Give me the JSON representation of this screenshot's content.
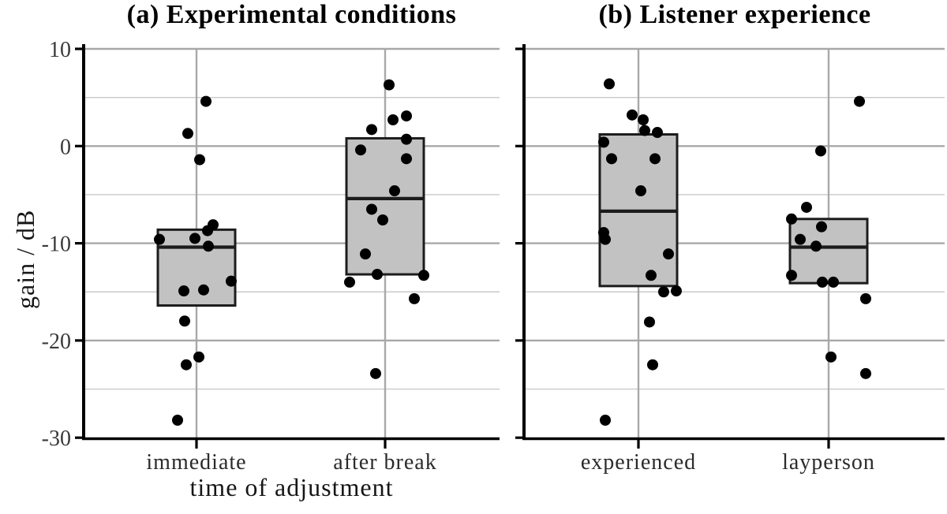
{
  "figure": {
    "background": "#ffffff"
  },
  "style": {
    "box_fill": "#c2c2c2",
    "box_stroke": "#1c1c1c",
    "median_color": "#1c1c1c",
    "point_color": "#000000",
    "axis_color": "#000000",
    "grid_major_color": "#a8a8a8",
    "grid_minor_color": "#c9c9c9",
    "tick_label_color": "#3a3a3a",
    "category_label_color": "#2b2b2b"
  },
  "chart_data": [
    {
      "type": "boxplot",
      "panel_label": "a",
      "title": "(a) Experimental conditions",
      "xlabel": "time of adjustment",
      "ylabel": "gain / dB",
      "ylim": [
        -30,
        10
      ],
      "y_major_ticks": [
        10,
        0,
        -10,
        -20,
        -30
      ],
      "y_minor_gridlines": [
        5,
        -5,
        -15,
        -25
      ],
      "grid": true,
      "legend": "none",
      "categories": [
        "immediate",
        "after break"
      ],
      "boxes": [
        {
          "category": "immediate",
          "q1": -16.4,
          "median": -10.4,
          "q3": -8.6
        },
        {
          "category": "after break",
          "q1": -13.2,
          "median": -5.4,
          "q3": 0.8
        }
      ],
      "points": [
        {
          "category": "immediate",
          "points_dx_db": [
            [
              12,
              4.6
            ],
            [
              -11,
              1.3
            ],
            [
              4,
              -1.4
            ],
            [
              21,
              -8.1
            ],
            [
              14,
              -8.7
            ],
            [
              -2,
              -9.5
            ],
            [
              -47,
              -9.6
            ],
            [
              15,
              -10.3
            ],
            [
              44,
              -13.9
            ],
            [
              9,
              -14.8
            ],
            [
              -16,
              -14.9
            ],
            [
              -15,
              -18.0
            ],
            [
              3,
              -21.7
            ],
            [
              -13,
              -22.5
            ],
            [
              -24,
              -28.2
            ]
          ]
        },
        {
          "category": "after break",
          "points_dx_db": [
            [
              5,
              6.3
            ],
            [
              27,
              3.1
            ],
            [
              10,
              2.7
            ],
            [
              -17,
              1.7
            ],
            [
              27,
              0.7
            ],
            [
              -31,
              -0.4
            ],
            [
              27,
              -1.3
            ],
            [
              12,
              -4.6
            ],
            [
              -17,
              -6.5
            ],
            [
              -3,
              -7.6
            ],
            [
              -25,
              -11.1
            ],
            [
              -10,
              -13.2
            ],
            [
              49,
              -13.3
            ],
            [
              -45,
              -14.0
            ],
            [
              37,
              -15.7
            ],
            [
              -12,
              -23.4
            ]
          ]
        }
      ]
    },
    {
      "type": "boxplot",
      "panel_label": "b",
      "title": "(b) Listener experience",
      "xlabel": "",
      "ylabel": "gain / dB",
      "ylim": [
        -30,
        10
      ],
      "y_major_ticks": [
        10,
        0,
        -10,
        -20,
        -30
      ],
      "y_minor_gridlines": [
        5,
        -5,
        -15,
        -25
      ],
      "grid": true,
      "legend": "none",
      "categories": [
        "experienced",
        "layperson"
      ],
      "boxes": [
        {
          "category": "experienced",
          "q1": -14.4,
          "median": -6.7,
          "q3": 1.2
        },
        {
          "category": "layperson",
          "q1": -14.1,
          "median": -10.4,
          "q3": -7.5
        }
      ],
      "points": [
        {
          "category": "experienced",
          "points_dx_db": [
            [
              -37,
              6.4
            ],
            [
              -8,
              3.2
            ],
            [
              6,
              2.7
            ],
            [
              8,
              1.6
            ],
            [
              24,
              1.4
            ],
            [
              -44,
              0.4
            ],
            [
              -34,
              -1.3
            ],
            [
              21,
              -1.3
            ],
            [
              3,
              -4.6
            ],
            [
              -44,
              -8.9
            ],
            [
              -42,
              -9.6
            ],
            [
              38,
              -11.1
            ],
            [
              16,
              -13.3
            ],
            [
              48,
              -14.9
            ],
            [
              32,
              -15.0
            ],
            [
              14,
              -18.1
            ],
            [
              18,
              -22.5
            ],
            [
              -42,
              -28.2
            ]
          ]
        },
        {
          "category": "layperson",
          "points_dx_db": [
            [
              39,
              4.6
            ],
            [
              -10,
              -0.5
            ],
            [
              -28,
              -6.3
            ],
            [
              -47,
              -7.5
            ],
            [
              -9,
              -8.3
            ],
            [
              -36,
              -9.6
            ],
            [
              -16,
              -10.3
            ],
            [
              -47,
              -13.3
            ],
            [
              -8,
              -14.0
            ],
            [
              6,
              -14.0
            ],
            [
              47,
              -15.7
            ],
            [
              3,
              -21.7
            ],
            [
              47,
              -23.4
            ]
          ]
        }
      ]
    }
  ]
}
